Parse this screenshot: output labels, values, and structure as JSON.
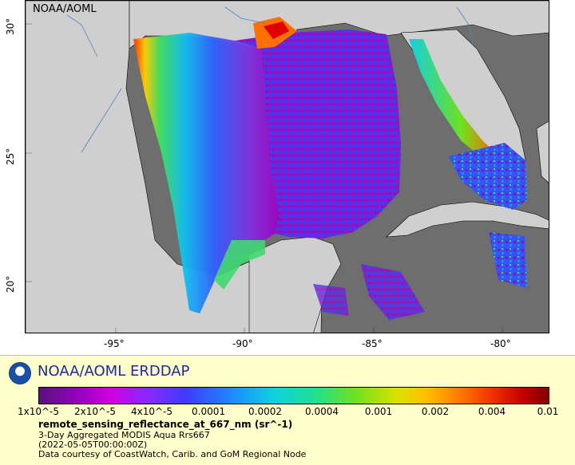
{
  "map": {
    "corner_label": "NOAA/AOML",
    "lat_ticks": [
      "30°",
      "25°",
      "20°"
    ],
    "lon_ticks": [
      "-95°",
      "-90°",
      "-85°",
      "-80°"
    ],
    "colors": {
      "land": "#cfcfcf",
      "no_data": "#6e6e6e",
      "coast_line": "#000000",
      "river": "#4a86c8"
    }
  },
  "legend": {
    "brand": "NOAA/AOML ERDDAP",
    "logo_icon": "noaa-logo-icon",
    "colorbar_labels": [
      "1x10^-5",
      "2x10^-5",
      "4x10^-5",
      "0.0001",
      "0.0002",
      "0.0004",
      "0.001",
      "0.002",
      "0.004",
      "0.01"
    ],
    "variable": "remote_sensing_reflectance_at_667_nm (sr^-1)",
    "dataset": "3-Day Aggregated MODIS Aqua Rrs667",
    "time": "(2022-05-05T00:00:00Z)",
    "credit": "Data courtesy of CoastWatch, Carib. and GoM Regional Node"
  }
}
